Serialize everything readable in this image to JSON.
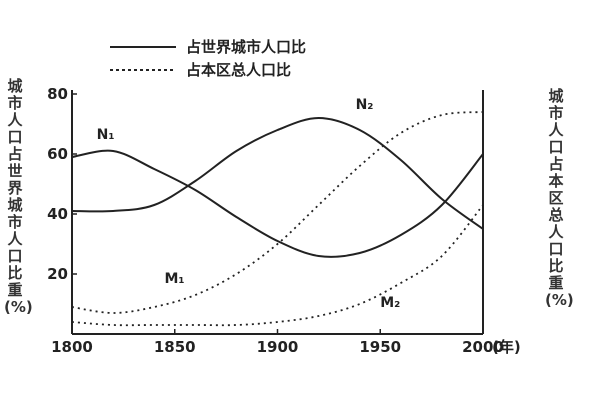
{
  "chart_data": {
    "type": "line",
    "legend": [
      {
        "label": "占世界城市人口比",
        "style": "solid"
      },
      {
        "label": "占本区总人口比",
        "style": "dashed"
      }
    ],
    "legend_placement": "top",
    "ylabel_left": "城市人口占世界城市人口比重(%)",
    "ylabel_right": "城市人口占本区总人口比重(%)",
    "xunit": "(年)",
    "xlim": [
      1800,
      2000
    ],
    "ylim": [
      0,
      80
    ],
    "xticks": [
      "1800",
      "1850",
      "1900",
      "1950",
      "2000"
    ],
    "yticks": [
      "20",
      "40",
      "60",
      "80"
    ],
    "series": [
      {
        "name": "N₁",
        "style": "solid",
        "x": [
          1800,
          1820,
          1840,
          1860,
          1880,
          1900,
          1920,
          1940,
          1960,
          1980,
          2000
        ],
        "y": [
          59,
          61,
          55,
          48,
          39,
          31,
          26,
          27,
          33,
          43,
          60
        ]
      },
      {
        "name": "N₂",
        "style": "solid",
        "x": [
          1800,
          1820,
          1840,
          1860,
          1880,
          1900,
          1920,
          1940,
          1960,
          1980,
          2000
        ],
        "y": [
          41,
          41,
          43,
          51,
          61,
          68,
          72,
          68,
          58,
          45,
          35
        ]
      },
      {
        "name": "M₁",
        "style": "dashed",
        "x": [
          1800,
          1820,
          1840,
          1860,
          1880,
          1900,
          1920,
          1940,
          1960,
          1980,
          2000
        ],
        "y": [
          9,
          7,
          9,
          13,
          20,
          30,
          43,
          56,
          67,
          73,
          74
        ]
      },
      {
        "name": "M₂",
        "style": "dashed",
        "x": [
          1800,
          1820,
          1840,
          1860,
          1880,
          1900,
          1920,
          1940,
          1960,
          1980,
          2000
        ],
        "y": [
          4,
          3,
          3,
          3,
          3,
          4,
          6,
          10,
          17,
          26,
          43
        ]
      }
    ]
  }
}
